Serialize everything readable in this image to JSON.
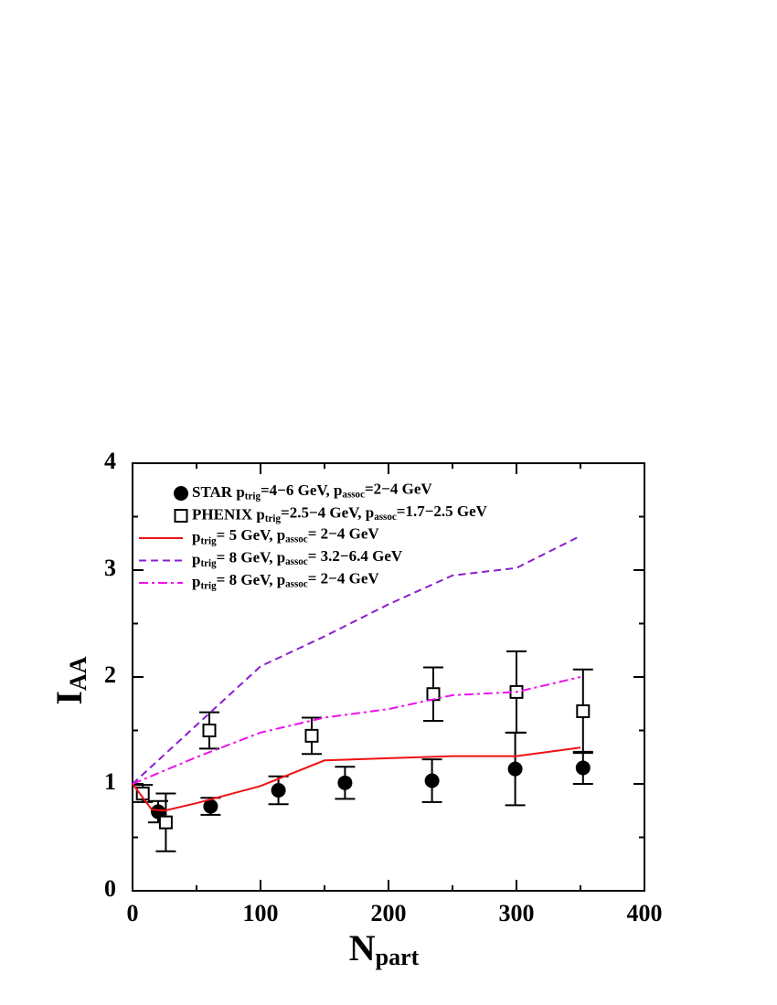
{
  "chart_data": {
    "type": "line",
    "xlabel": "N_{part}",
    "ylabel": "I_{AA}",
    "xlim": [
      0,
      400
    ],
    "ylim": [
      0,
      4
    ],
    "xticks": [
      0,
      100,
      200,
      300,
      400
    ],
    "yticks": [
      0,
      1,
      2,
      3,
      4
    ],
    "legend": "upper left",
    "series": [
      {
        "name": "STAR p_{trig}=4−6 GeV, p_{assoc}=2−4 GeV",
        "marker": "circle",
        "color": "#000000",
        "x": [
          20,
          61,
          114,
          166,
          234,
          299,
          352
        ],
        "values": [
          0.74,
          0.79,
          0.94,
          1.01,
          1.03,
          1.14,
          1.15
        ],
        "errors": [
          0.1,
          0.08,
          0.13,
          0.15,
          0.2,
          0.34,
          0.15
        ]
      },
      {
        "name": "PHENIX p_{trig}=2.5−4 GeV, p_{assoc}=1.7−2.5 GeV",
        "marker": "square",
        "color": "#000000",
        "x": [
          8,
          26,
          60,
          140,
          235,
          300,
          352
        ],
        "values": [
          0.91,
          0.64,
          1.5,
          1.45,
          1.84,
          1.86,
          1.68
        ],
        "errors": [
          0.08,
          0.27,
          0.17,
          0.17,
          0.25,
          0.38,
          0.39
        ]
      },
      {
        "name": "p_{trig}= 5 GeV, p_{assoc}= 2−4 GeV",
        "dash": "solid",
        "color": "#ee1111",
        "x": [
          0,
          15,
          25,
          50,
          100,
          150,
          200,
          250,
          300,
          350
        ],
        "values": [
          1,
          0.76,
          0.75,
          0.82,
          0.98,
          1.22,
          1.24,
          1.26,
          1.26,
          1.34
        ]
      },
      {
        "name": "p_{trig}= 8 GeV, p_{assoc}= 3.2−6.4 GeV",
        "dash": "dashed",
        "color": "#8a1ecf",
        "x": [
          0,
          50,
          100,
          150,
          200,
          250,
          300,
          350
        ],
        "values": [
          1,
          1.55,
          2.1,
          2.38,
          2.68,
          2.95,
          3.02,
          3.32
        ]
      },
      {
        "name": "p_{trig}= 8 GeV, p_{assoc}= 2−4 GeV",
        "dash": "dashdot",
        "color": "#ee11ee",
        "x": [
          0,
          50,
          100,
          150,
          200,
          250,
          300,
          350
        ],
        "values": [
          1,
          1.25,
          1.48,
          1.62,
          1.7,
          1.83,
          1.86,
          2.0
        ]
      }
    ]
  }
}
